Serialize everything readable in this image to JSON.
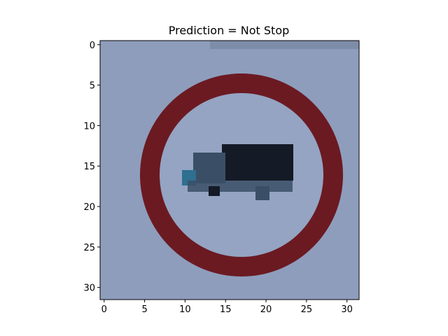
{
  "figure": {
    "title": "Prediction = Not Stop",
    "image": {
      "description": "32x32 low-resolution traffic sign: round sign with a dark red ring on a pale blue-grey background and a dark truck silhouette in the center",
      "colors": {
        "background": "#8e9dbc",
        "ring": "#6b1a22",
        "sign_interior": "#94a4c2",
        "truck_body": "#141a26",
        "truck_cab": "#3a4f66",
        "truck_cab_light": "#2f6f8f",
        "top_edge": "#6f7f99"
      }
    },
    "x_ticks": [
      "0",
      "5",
      "10",
      "15",
      "20",
      "25",
      "30"
    ],
    "y_ticks": [
      "0",
      "5",
      "10",
      "15",
      "20",
      "25",
      "30"
    ],
    "x_tick_values": [
      0,
      5,
      10,
      15,
      20,
      25,
      30
    ],
    "y_tick_values": [
      0,
      5,
      10,
      15,
      20,
      25,
      30
    ],
    "extent": [
      -0.5,
      31.5
    ]
  }
}
